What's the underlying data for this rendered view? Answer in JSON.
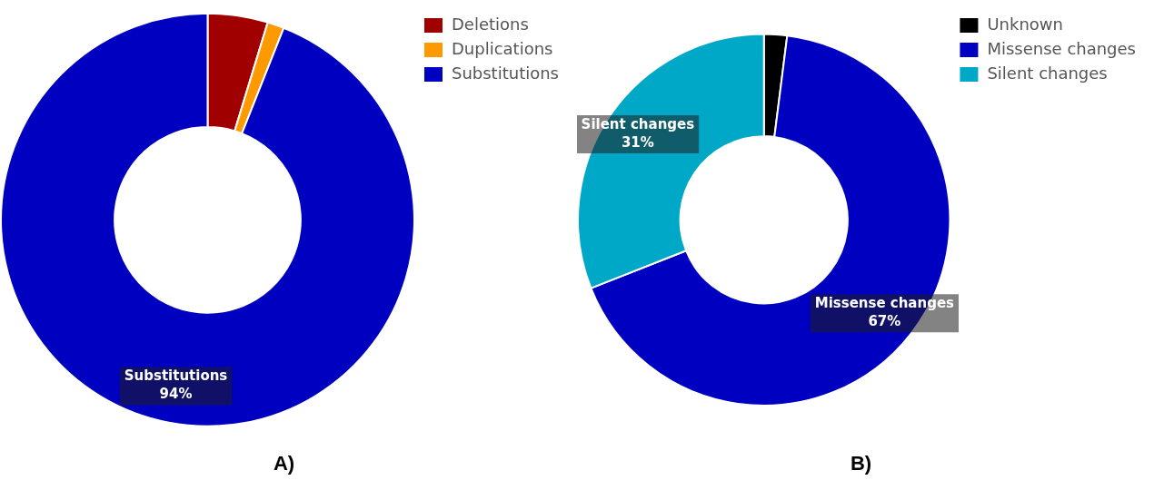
{
  "chart_data": [
    {
      "type": "donut",
      "title": "A)",
      "categories": [
        "Deletions",
        "Duplications",
        "Substitutions"
      ],
      "values": [
        4.7,
        1.3,
        94
      ],
      "colors": [
        "#a00000",
        "#ff9900",
        "#0000c0"
      ],
      "value_labels": [
        null,
        null,
        "94%"
      ],
      "legend": "top right"
    },
    {
      "type": "donut",
      "title": "B)",
      "categories": [
        "Unknown",
        "Missense changes",
        "Silent changes"
      ],
      "values": [
        2,
        67,
        31
      ],
      "colors": [
        "#000000",
        "#0000c0",
        "#00a8c8"
      ],
      "value_labels": [
        null,
        "67%",
        "31%"
      ],
      "legend": "top right"
    }
  ]
}
